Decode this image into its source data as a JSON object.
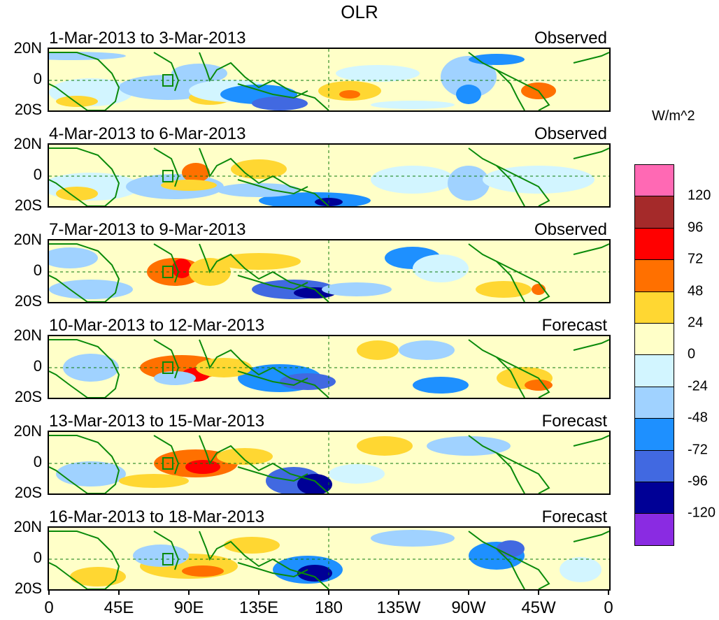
{
  "title": "OLR",
  "units": "W/m^2",
  "panels": [
    {
      "dates": "1-Mar-2013 to 3-Mar-2013",
      "kind": "Observed"
    },
    {
      "dates": "4-Mar-2013 to 6-Mar-2013",
      "kind": "Observed"
    },
    {
      "dates": "7-Mar-2013 to 9-Mar-2013",
      "kind": "Observed"
    },
    {
      "dates": "10-Mar-2013 to 12-Mar-2013",
      "kind": "Forecast"
    },
    {
      "dates": "13-Mar-2013 to 15-Mar-2013",
      "kind": "Forecast"
    },
    {
      "dates": "16-Mar-2013 to 18-Mar-2013",
      "kind": "Forecast"
    }
  ],
  "lat_ticks": [
    "20N",
    "0",
    "20S"
  ],
  "lon_ticks": [
    "0",
    "45E",
    "90E",
    "135E",
    "180",
    "135W",
    "90W",
    "45W",
    "0"
  ],
  "colorbar": {
    "colors": [
      "#ff69b4",
      "#a52a2a",
      "#ff0000",
      "#ff7000",
      "#ffd732",
      "#ffffc8",
      "#d2f5ff",
      "#a0d2ff",
      "#1e90ff",
      "#4169e1",
      "#000096",
      "#8a2be2"
    ],
    "labels": [
      "120",
      "96",
      "72",
      "48",
      "24",
      "0",
      "-24",
      "-48",
      "-72",
      "-96",
      "-120"
    ]
  }
}
